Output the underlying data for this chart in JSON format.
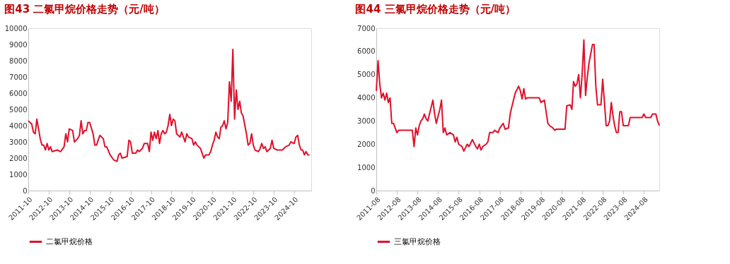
{
  "chart_data": [
    {
      "type": "line",
      "title": "图43  二氯甲烷价格走势（元/吨）",
      "legend": "bottom",
      "grid": false,
      "marker": "none",
      "line_style": "solid",
      "x": [
        "2011-10",
        "2011-12",
        "2012-01",
        "2012-02",
        "2012-03",
        "2012-04",
        "2012-05",
        "2012-06",
        "2012-07",
        "2012-08",
        "2012-09",
        "2012-10",
        "2012-11",
        "2012-12",
        "2013-03",
        "2013-05",
        "2013-07",
        "2013-08",
        "2013-09",
        "2013-10",
        "2013-12",
        "2014-01",
        "2014-03",
        "2014-04",
        "2014-05",
        "2014-06",
        "2014-07",
        "2014-08",
        "2014-09",
        "2014-10",
        "2014-12",
        "2015-01",
        "2015-02",
        "2015-03",
        "2015-04",
        "2015-06",
        "2015-07",
        "2015-08",
        "2015-10",
        "2015-12",
        "2016-02",
        "2016-03",
        "2016-04",
        "2016-05",
        "2016-08",
        "2016-09",
        "2016-10",
        "2016-11",
        "2017-01",
        "2017-02",
        "2017-03",
        "2017-05",
        "2017-06",
        "2017-08",
        "2017-09",
        "2017-10",
        "2017-11",
        "2017-12",
        "2018-01",
        "2018-02",
        "2018-03",
        "2018-04",
        "2018-05",
        "2018-06",
        "2018-07",
        "2018-08",
        "2018-09",
        "2018-10",
        "2018-11",
        "2018-12",
        "2019-01",
        "2019-03",
        "2019-04",
        "2019-06",
        "2019-07",
        "2019-08",
        "2019-10",
        "2019-11",
        "2019-12",
        "2020-01",
        "2020-03",
        "2020-05",
        "2020-06",
        "2020-08",
        "2020-09",
        "2020-10",
        "2020-11",
        "2020-12",
        "2021-01",
        "2021-02",
        "2021-03",
        "2021-04",
        "2021-05",
        "2021-06",
        "2021-07",
        "2021-08",
        "2021-09",
        "2021-10",
        "2021-11",
        "2021-12",
        "2022-01",
        "2022-02",
        "2022-03",
        "2022-04",
        "2022-06",
        "2022-07",
        "2022-08",
        "2022-09",
        "2022-10",
        "2022-11",
        "2023-01",
        "2023-02",
        "2023-03",
        "2023-04",
        "2023-05",
        "2023-06",
        "2023-08",
        "2023-09",
        "2023-10",
        "2023-12",
        "2024-02",
        "2024-03",
        "2024-04",
        "2024-05",
        "2024-07",
        "2024-08",
        "2024-10",
        "2024-11",
        "2024-12",
        "2025-01",
        "2025-02",
        "2025-03",
        "2025-04",
        "2025-05",
        "2025-06",
        "2025-07"
      ],
      "series": [
        {
          "name": "二氯甲烷价格",
          "color": "#e0102a",
          "values": [
            4300,
            4100,
            3600,
            3500,
            4400,
            3800,
            3200,
            2800,
            2800,
            2500,
            2900,
            2500,
            2700,
            2400,
            2500,
            2400,
            2700,
            3500,
            3000,
            3800,
            3700,
            3000,
            3200,
            3400,
            4300,
            3500,
            3700,
            3700,
            4200,
            4200,
            3500,
            2800,
            2800,
            3100,
            3400,
            3200,
            2700,
            2700,
            2200,
            1900,
            1800,
            2200,
            2300,
            2000,
            2100,
            3100,
            3000,
            2300,
            2300,
            2500,
            2400,
            2600,
            2900,
            2900,
            2400,
            3600,
            3100,
            3600,
            3200,
            3700,
            2900,
            3500,
            3700,
            3500,
            3600,
            4000,
            4700,
            4000,
            4400,
            4300,
            3500,
            3300,
            3600,
            3000,
            3500,
            3300,
            3200,
            2800,
            3000,
            2800,
            2600,
            2000,
            2200,
            2200,
            2400,
            2800,
            3100,
            3600,
            3300,
            3200,
            3900,
            4000,
            4300,
            3800,
            4200,
            6700,
            5500,
            8700,
            4400,
            6200,
            5000,
            5500,
            4800,
            4600,
            3500,
            2800,
            2900,
            3500,
            2800,
            2500,
            2400,
            2600,
            2900,
            2600,
            2700,
            2400,
            2600,
            3100,
            2600,
            2500,
            2500,
            2500,
            2600,
            2700,
            2800,
            3000,
            2900,
            3300,
            3400,
            2800,
            2500,
            2500,
            2200,
            2400,
            2200,
            2200
          ]
        }
      ],
      "xlim": [
        "2011-10",
        "2025-08"
      ],
      "xticks": [
        "2011-10",
        "2012-10",
        "2013-10",
        "2014-10",
        "2015-10",
        "2016-10",
        "2017-10",
        "2018-10",
        "2019-10",
        "2020-10",
        "2021-10",
        "2022-10",
        "2023-10",
        "2024-10"
      ],
      "ylim": [
        0,
        10000
      ],
      "yticks": [
        0,
        1000,
        2000,
        3000,
        4000,
        5000,
        6000,
        7000,
        8000,
        9000,
        10000
      ]
    },
    {
      "type": "line",
      "title": "图44  三氯甲烷价格走势（元/吨）",
      "legend": "bottom",
      "grid": false,
      "marker": "none",
      "line_style": "solid",
      "x": [
        "2011-08",
        "2011-09",
        "2011-10",
        "2011-11",
        "2011-12",
        "2012-01",
        "2012-02",
        "2012-03",
        "2012-04",
        "2012-05",
        "2012-06",
        "2012-07",
        "2012-08",
        "2012-09",
        "2013-05",
        "2013-06",
        "2013-07",
        "2013-08",
        "2013-09",
        "2013-10",
        "2013-11",
        "2013-12",
        "2014-01",
        "2014-02",
        "2014-03",
        "2014-04",
        "2014-05",
        "2014-06",
        "2014-07",
        "2014-08",
        "2014-09",
        "2014-10",
        "2014-11",
        "2014-12",
        "2015-01",
        "2015-03",
        "2015-05",
        "2015-06",
        "2015-07",
        "2015-08",
        "2015-10",
        "2015-11",
        "2016-01",
        "2016-02",
        "2016-04",
        "2016-06",
        "2016-07",
        "2016-08",
        "2016-09",
        "2016-10",
        "2016-12",
        "2017-01",
        "2017-02",
        "2017-04",
        "2017-05",
        "2017-07",
        "2017-08",
        "2017-10",
        "2017-11",
        "2018-01",
        "2018-02",
        "2018-03",
        "2018-04",
        "2018-05",
        "2018-07",
        "2018-08",
        "2018-09",
        "2018-10",
        "2018-11",
        "2018-12",
        "2019-07",
        "2019-08",
        "2019-10",
        "2019-11",
        "2019-12",
        "2020-01",
        "2020-03",
        "2020-04",
        "2020-05",
        "2020-10",
        "2020-11",
        "2021-01",
        "2021-02",
        "2021-03",
        "2021-04",
        "2021-05",
        "2021-06",
        "2021-07",
        "2021-08",
        "2021-09",
        "2021-10",
        "2021-11",
        "2021-12",
        "2022-02",
        "2022-03",
        "2022-04",
        "2022-05",
        "2022-07",
        "2022-08",
        "2022-09",
        "2022-10",
        "2022-11",
        "2022-12",
        "2023-01",
        "2023-02",
        "2023-03",
        "2023-04",
        "2023-05",
        "2023-06",
        "2023-07",
        "2023-08",
        "2023-11",
        "2023-12",
        "2024-07",
        "2024-08",
        "2024-09",
        "2024-12",
        "2025-01",
        "2025-03",
        "2025-04",
        "2025-05"
      ],
      "series": [
        {
          "name": "三氯甲烷价格",
          "color": "#e0102a",
          "values": [
            4300,
            5600,
            4600,
            4000,
            4200,
            3900,
            4200,
            3800,
            4000,
            2900,
            2900,
            2700,
            2500,
            2600,
            2600,
            1900,
            2700,
            2400,
            2800,
            3000,
            3100,
            3300,
            3100,
            3000,
            3300,
            3600,
            3900,
            3300,
            2900,
            3200,
            3500,
            3900,
            2500,
            2700,
            2400,
            2500,
            2400,
            2100,
            2300,
            2000,
            1900,
            1700,
            2000,
            1900,
            2200,
            1900,
            1800,
            2000,
            1750,
            1900,
            2000,
            2100,
            2500,
            2500,
            2600,
            2500,
            2700,
            2900,
            2650,
            2700,
            3300,
            3600,
            3900,
            4200,
            4500,
            4300,
            3950,
            4400,
            3950,
            4000,
            4000,
            3800,
            3900,
            3400,
            2900,
            2800,
            2700,
            2600,
            2650,
            2650,
            3650,
            3700,
            3500,
            4700,
            4500,
            4600,
            5000,
            4000,
            5000,
            6500,
            4100,
            4900,
            5500,
            6300,
            6300,
            4500,
            3700,
            3700,
            4800,
            3800,
            2800,
            2800,
            3000,
            3800,
            3200,
            2800,
            2500,
            2500,
            3400,
            3400,
            2800,
            2800,
            3150,
            3150,
            3300,
            3150,
            3150,
            3300,
            3300,
            3000,
            2800
          ]
        }
      ],
      "xlim": [
        "2011-08",
        "2025-05"
      ],
      "xticks": [
        "2011-08",
        "2012-08",
        "2013-08",
        "2014-08",
        "2015-08",
        "2016-08",
        "2017-08",
        "2018-08",
        "2019-08",
        "2020-08",
        "2021-08",
        "2022-08",
        "2023-08",
        "2024-08"
      ],
      "ylim": [
        0,
        7000
      ],
      "yticks": [
        0,
        1000,
        2000,
        3000,
        4000,
        5000,
        6000,
        7000
      ]
    }
  ]
}
